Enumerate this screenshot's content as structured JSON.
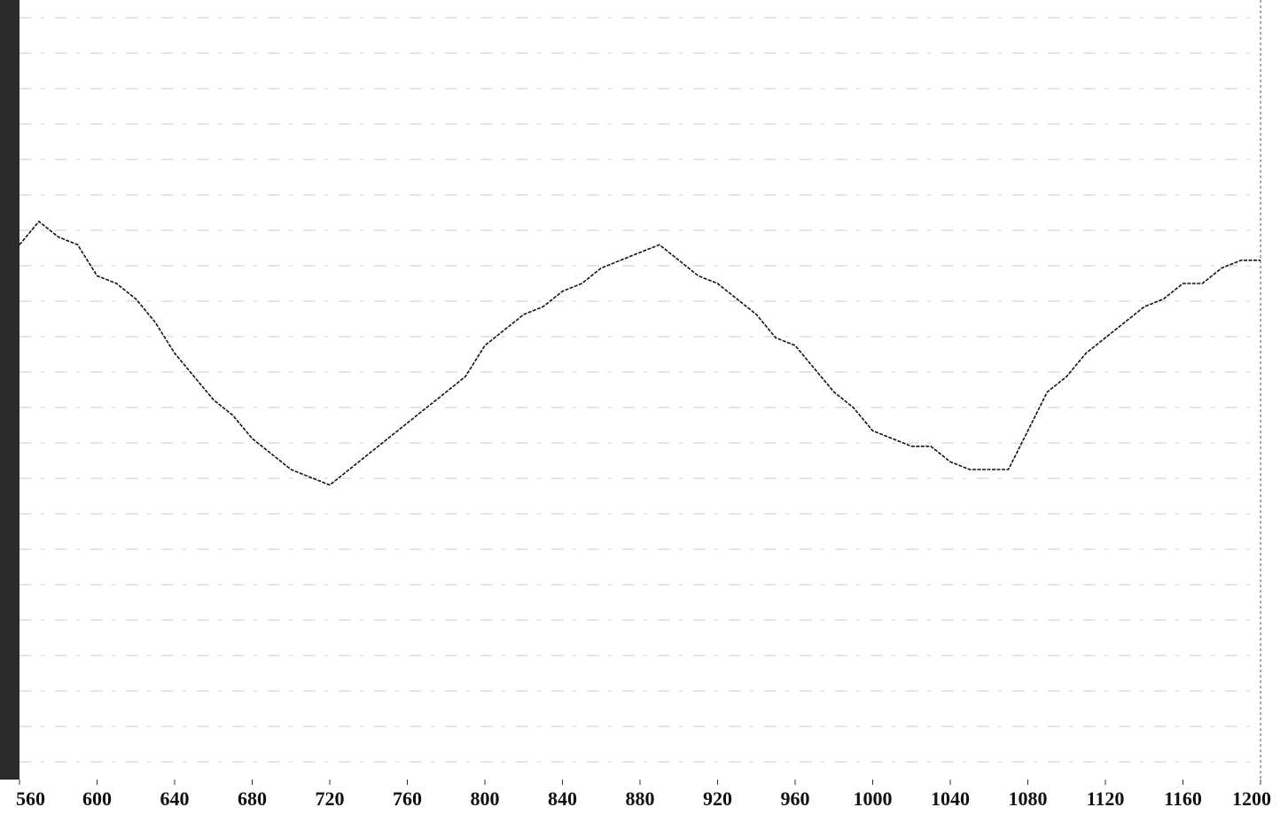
{
  "chart_data": {
    "type": "line",
    "x": [
      560,
      570,
      580,
      590,
      600,
      610,
      620,
      630,
      640,
      650,
      660,
      670,
      680,
      690,
      700,
      710,
      720,
      730,
      740,
      750,
      760,
      770,
      780,
      790,
      800,
      810,
      820,
      830,
      840,
      850,
      860,
      870,
      880,
      890,
      900,
      910,
      920,
      930,
      940,
      950,
      960,
      970,
      980,
      990,
      1000,
      1010,
      1020,
      1030,
      1040,
      1050,
      1060,
      1070,
      1080,
      1090,
      1100,
      1110,
      1120,
      1130,
      1140,
      1150,
      1160,
      1170,
      1180,
      1190,
      1200
    ],
    "series": [
      {
        "color": "#111111",
        "values": [
          69,
          72,
          70,
          69,
          65,
          64,
          62,
          59,
          55,
          52,
          49,
          47,
          44,
          42,
          40,
          39,
          38,
          40,
          42,
          44,
          46,
          48,
          50,
          52,
          56,
          58,
          60,
          61,
          63,
          64,
          66,
          67,
          68,
          69,
          67,
          65,
          64,
          62,
          60,
          57,
          56,
          53,
          50,
          48,
          45,
          44,
          43,
          43,
          41,
          40,
          40,
          40,
          45,
          50,
          52,
          55,
          57,
          59,
          61,
          62,
          64,
          64,
          66,
          67,
          67
        ]
      }
    ],
    "xlim": [
      560,
      1200
    ],
    "xticks": [
      560,
      600,
      640,
      680,
      720,
      760,
      800,
      840,
      880,
      920,
      960,
      1000,
      1040,
      1080,
      1120,
      1160,
      1200
    ],
    "ylim": [
      0,
      100
    ]
  }
}
